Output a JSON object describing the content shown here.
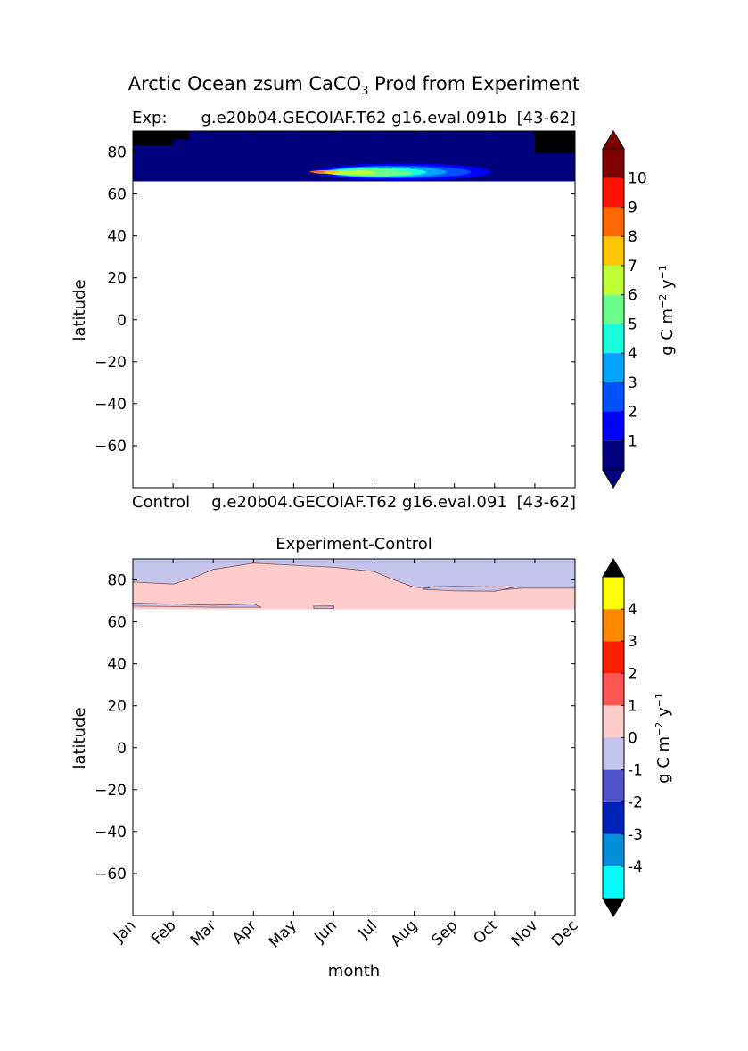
{
  "figure": {
    "title": "Arctic Ocean zsum CaCO",
    "title_sub": "3",
    "title_suffix": " Prod from Experiment"
  },
  "colors": {
    "panel1_levels": [
      "#00007f",
      "#0000ff",
      "#0050ff",
      "#00a4ff",
      "#19ffdd",
      "#6aff8c",
      "#c0ff36",
      "#ffc600",
      "#ff6800",
      "#ff1300",
      "#7f0000"
    ],
    "panel1_under": "#00007f",
    "panel1_over": "#7f0000",
    "panel2_levels": [
      "#00ffff",
      "#008fd8",
      "#0022bb",
      "#5252cc",
      "#c4c4ec",
      "#ffcccc",
      "#ff5555",
      "#ff1d00",
      "#ff8a00",
      "#ffff00"
    ],
    "panel2_under": "#000000",
    "panel2_over": "#000000",
    "nodata": "#000000"
  },
  "chart_data": [
    {
      "type": "heatmap",
      "panel": "experiment",
      "left_label": "Exp:",
      "center_label": "g.e20b04.GECOIAF.T62 g16.eval.091b",
      "right_label": "[43-62]",
      "xlabel": "",
      "ylabel": "latitude",
      "xlim": [
        1,
        12
      ],
      "ylim": [
        -80,
        90
      ],
      "yticks": [
        80,
        60,
        40,
        20,
        0,
        -20,
        -40,
        -60
      ],
      "ytick_labels": [
        "80",
        "60",
        "40",
        "20",
        "0",
        "−20",
        "−40",
        "−60"
      ],
      "data_lat_range": [
        66,
        90
      ],
      "blobs": [
        {
          "x": 7.7,
          "y": 70.5,
          "rx": 4.4,
          "ry": 4.0,
          "level": "1-2"
        },
        {
          "x": 7.6,
          "y": 70.5,
          "rx": 3.6,
          "ry": 3.0,
          "level": "2-3"
        },
        {
          "x": 7.3,
          "y": 70.5,
          "rx": 3.0,
          "ry": 2.6,
          "level": "3-4"
        },
        {
          "x": 7.1,
          "y": 70.4,
          "rx": 2.4,
          "ry": 2.1,
          "level": "4-5"
        },
        {
          "x": 7.0,
          "y": 70.2,
          "rx": 1.9,
          "ry": 1.6,
          "level": "5-6"
        },
        {
          "x": 6.4,
          "y": 70.2,
          "rx": 1.3,
          "ry": 1.1,
          "level": "6-7"
        },
        {
          "x": 5.8,
          "y": 70.5,
          "rx": 0.7,
          "ry": 0.8,
          "level": "7-8"
        },
        {
          "x": 5.6,
          "y": 70.6,
          "rx": 0.4,
          "ry": 0.5,
          "level": "8-9"
        }
      ],
      "nodata_regions": [
        {
          "x0": 1.0,
          "x1": 2.0,
          "y0": 83,
          "y1": 90
        },
        {
          "x0": 2.0,
          "x1": 2.4,
          "y0": 86,
          "y1": 90
        },
        {
          "x0": 11.0,
          "x1": 12.0,
          "y0": 79.5,
          "y1": 90
        }
      ],
      "colorbar": {
        "levels": [
          0,
          1,
          2,
          3,
          4,
          5,
          6,
          7,
          8,
          9,
          10,
          11
        ],
        "tick_labels": [
          "1",
          "2",
          "3",
          "4",
          "5",
          "6",
          "7",
          "8",
          "9",
          "10"
        ],
        "extend": "both",
        "label": "g C m",
        "label_exp1": "−2",
        "label_mid": " y",
        "label_exp2": "−1"
      }
    },
    {
      "type": "heatmap",
      "panel": "difference",
      "left_label": "Control",
      "center_label": "g.e20b04.GECOIAF.T62 g16.eval.091",
      "right_label": "[43-62]",
      "title": "Experiment-Control",
      "xlabel": "month",
      "ylabel": "latitude",
      "xlim": [
        1,
        12
      ],
      "ylim": [
        -80,
        90
      ],
      "xticks": [
        "Jan",
        "Feb",
        "Mar",
        "Apr",
        "May",
        "Jun",
        "Jul",
        "Aug",
        "Sep",
        "Oct",
        "Nov",
        "Dec"
      ],
      "yticks": [
        80,
        60,
        40,
        20,
        0,
        -20,
        -40,
        -60
      ],
      "ytick_labels": [
        "80",
        "60",
        "40",
        "20",
        "0",
        "−20",
        "−40",
        "−60"
      ],
      "data_lat_range": [
        66,
        90
      ],
      "base_level": "0-1",
      "negative_bands": [
        {
          "level": "-1-0",
          "points": [
            [
              1,
              90
            ],
            [
              12,
              90
            ],
            [
              12,
              76
            ],
            [
              10.7,
              76
            ],
            [
              10,
              75
            ],
            [
              9,
              75.5
            ],
            [
              8,
              76.5
            ],
            [
              7.5,
              80
            ],
            [
              7,
              84
            ],
            [
              6,
              86
            ],
            [
              5,
              87
            ],
            [
              4,
              88
            ],
            [
              3,
              85
            ],
            [
              2.5,
              81
            ],
            [
              2,
              78
            ],
            [
              1,
              79
            ]
          ]
        },
        {
          "level": "-1-0",
          "points": [
            [
              1,
              69
            ],
            [
              2,
              68.5
            ],
            [
              3,
              68
            ],
            [
              4,
              68.5
            ],
            [
              4.2,
              67
            ],
            [
              3,
              67
            ],
            [
              2,
              67.3
            ],
            [
              1,
              67.5
            ]
          ]
        },
        {
          "level": "-1-0",
          "points": [
            [
              8.2,
              75.5
            ],
            [
              9,
              74.8
            ],
            [
              10,
              74.6
            ],
            [
              10.5,
              76.5
            ],
            [
              9,
              77
            ],
            [
              8.5,
              76.8
            ]
          ]
        },
        {
          "level": "-1-0",
          "points": [
            [
              5.5,
              67.5
            ],
            [
              6,
              67.6
            ],
            [
              6.0,
              66.4
            ],
            [
              5.5,
              66.4
            ]
          ]
        }
      ],
      "colorbar": {
        "levels": [
          -5,
          -4,
          -3,
          -2,
          -1,
          0,
          1,
          2,
          3,
          4,
          5
        ],
        "tick_labels": [
          "-4",
          "-3",
          "-2",
          "-1",
          "0",
          "1",
          "2",
          "3",
          "4"
        ],
        "extend": "both",
        "label": "g C m",
        "label_exp1": "−2",
        "label_mid": " y",
        "label_exp2": "−1"
      }
    }
  ]
}
